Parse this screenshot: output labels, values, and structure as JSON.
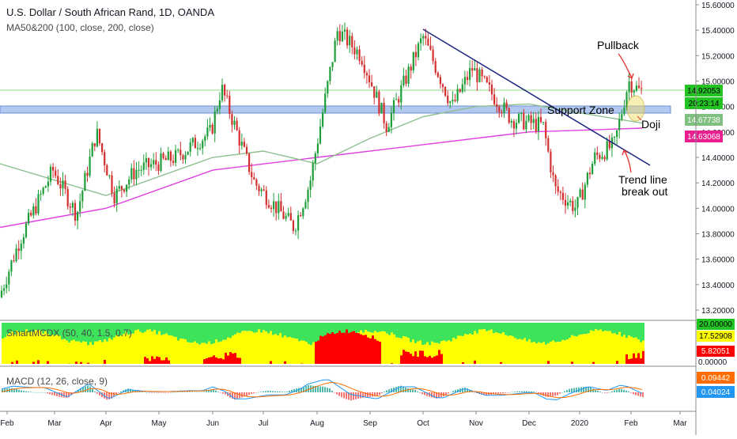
{
  "header": {
    "symbol_title": "U.S. Dollar / South African Rand, 1D, OANDA",
    "ma_legend": "MA50&200 (100, close, 200, close)",
    "smartmcdx_legend": "SmartMCDX (50, 40, 1.5, 0.7)",
    "macd_legend": "MACD (12, 26, close, 9)"
  },
  "annotations": {
    "support_zone": "Support Zone",
    "pullback": "Pullback",
    "doji": "Doji",
    "trend_line_1": "Trend line",
    "trend_line_2": "break out"
  },
  "price_badges": {
    "current_price": "14.92053",
    "countdown": "20:23:14",
    "ma100_value": "14.67738",
    "ma200_value": "14.63068"
  },
  "smart_badges": {
    "top": "20.00000",
    "mid": "17.52908",
    "red": "5.82051",
    "zero": "0.00000"
  },
  "macd_badges": {
    "macd": "0.09442",
    "signal": "0.04024"
  },
  "colors": {
    "up": "#26a69a",
    "down": "#ef5350",
    "candle_up": "#1e9e38",
    "candle_down": "#d32f2f",
    "ma100": "#8fbf8f",
    "ma200": "#e040e0",
    "trendline": "#1a237e",
    "support_zone": "#b3c8ee",
    "horizontal_level": "#b9e8b0",
    "badge_green": "#22c322",
    "badge_pink": "#e91e8f",
    "smart_green": "#3de35a",
    "smart_yellow": "#ffff00",
    "smart_red": "#ff0000",
    "macd_blue": "#2196f3",
    "macd_orange": "#ff6d00"
  },
  "chart_data": [
    {
      "type": "candlestick",
      "x_labels": [
        "Feb",
        "Mar",
        "Apr",
        "May",
        "Jun",
        "Jul",
        "Aug",
        "Sep",
        "Oct",
        "Nov",
        "Dec",
        "2020",
        "Feb",
        "Mar"
      ],
      "y_ticks": [
        "15.60000",
        "15.40000",
        "15.20000",
        "15.00000",
        "14.80000",
        "14.60000",
        "14.40000",
        "14.20000",
        "14.00000",
        "13.80000",
        "13.60000",
        "13.40000",
        "13.20000"
      ],
      "ylim": [
        13.1,
        15.63
      ],
      "series": [
        {
          "name": "USD/ZAR",
          "type": "ohlc",
          "approx_close_path": [
            [
              "Feb",
              13.3
            ],
            [
              "Feb",
              13.75
            ],
            [
              "Mar",
              14.3
            ],
            [
              "Mar",
              13.95
            ],
            [
              "Apr",
              14.6
            ],
            [
              "Apr",
              14.1
            ],
            [
              "May",
              14.3
            ],
            [
              "May",
              14.4
            ],
            [
              "Jun",
              14.6
            ],
            [
              "Jun",
              14.95
            ],
            [
              "Jul",
              14.2
            ],
            [
              "Jul",
              13.85
            ],
            [
              "Aug",
              14.2
            ],
            [
              "Aug",
              15.4
            ],
            [
              "Sep",
              15.2
            ],
            [
              "Sep",
              14.65
            ],
            [
              "Oct",
              15.35
            ],
            [
              "Oct",
              14.8
            ],
            [
              "Nov",
              15.1
            ],
            [
              "Nov",
              14.7
            ],
            [
              "Dec",
              14.65
            ],
            [
              "Dec",
              14.15
            ],
            [
              "2020",
              14.0
            ],
            [
              "2020",
              14.4
            ],
            [
              "Feb",
              14.5
            ],
            [
              "Feb",
              15.0
            ],
            [
              "Feb",
              14.92
            ]
          ]
        },
        {
          "name": "MA 100",
          "approx_path": [
            [
              "Feb",
              14.35
            ],
            [
              "Apr",
              14.1
            ],
            [
              "Jun",
              14.4
            ],
            [
              "Jul",
              14.45
            ],
            [
              "Aug",
              14.35
            ],
            [
              "Sep",
              14.55
            ],
            [
              "Oct",
              14.72
            ],
            [
              "Nov",
              14.8
            ],
            [
              "Dec",
              14.82
            ],
            [
              "2020",
              14.75
            ],
            [
              "Feb",
              14.67
            ]
          ]
        },
        {
          "name": "MA 200",
          "approx_path": [
            [
              "Feb",
              13.85
            ],
            [
              "Apr",
              14.0
            ],
            [
              "Jun",
              14.3
            ],
            [
              "Aug",
              14.4
            ],
            [
              "Oct",
              14.5
            ],
            [
              "Dec",
              14.6
            ],
            [
              "Feb",
              14.63
            ]
          ]
        }
      ],
      "support_zone": [
        14.73,
        14.77
      ],
      "horizontal_level": 14.92,
      "trend_line": {
        "from": [
          "Oct",
          15.4
        ],
        "to": [
          "Feb",
          14.35
        ]
      }
    },
    {
      "type": "area",
      "title": "SmartMCDX (50, 40, 1.5, 0.7)",
      "ylim": [
        0,
        20
      ],
      "y_ticks": [
        "20.00000",
        "17.52908",
        "5.82051",
        "0.00000"
      ]
    },
    {
      "type": "bar",
      "title": "MACD (12, 26, close, 9)",
      "series_values": {
        "macd": 0.09442,
        "signal": 0.04024
      }
    }
  ]
}
